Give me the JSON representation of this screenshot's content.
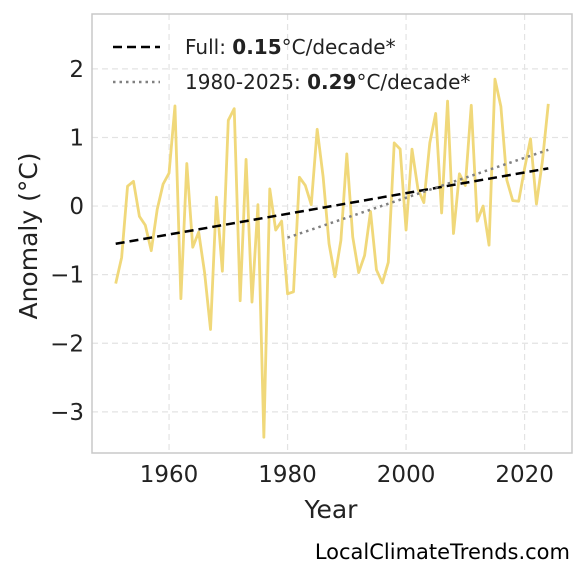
{
  "chart_data": {
    "type": "line",
    "xlabel": "Year",
    "ylabel": "Anomaly (°C)",
    "xlim": [
      1947,
      2028
    ],
    "ylim": [
      -3.6,
      2.8
    ],
    "x_ticks": [
      1960,
      1980,
      2000,
      2020
    ],
    "x_tick_labels": [
      "1960",
      "1980",
      "2000",
      "2020"
    ],
    "y_ticks": [
      -3,
      -2,
      -1,
      0,
      1,
      2
    ],
    "y_tick_labels": [
      "−3",
      "−2",
      "−1",
      "0",
      "1",
      "2"
    ],
    "grid": true,
    "legend_position": "top-left",
    "series": [
      {
        "color": "#f0d87a",
        "x": [
          1951,
          1952,
          1953,
          1954,
          1955,
          1956,
          1957,
          1958,
          1959,
          1960,
          1961,
          1962,
          1963,
          1964,
          1965,
          1966,
          1967,
          1968,
          1969,
          1970,
          1971,
          1972,
          1973,
          1974,
          1975,
          1976,
          1977,
          1978,
          1979,
          1980,
          1981,
          1982,
          1983,
          1984,
          1985,
          1986,
          1987,
          1988,
          1989,
          1990,
          1991,
          1992,
          1993,
          1994,
          1995,
          1996,
          1997,
          1998,
          1999,
          2000,
          2001,
          2002,
          2003,
          2004,
          2005,
          2006,
          2007,
          2008,
          2009,
          2010,
          2011,
          2012,
          2013,
          2014,
          2015,
          2016,
          2017,
          2018,
          2019,
          2020,
          2021,
          2022,
          2023,
          2024
        ],
        "values": [
          -1.13,
          -0.75,
          0.29,
          0.36,
          -0.15,
          -0.28,
          -0.65,
          -0.05,
          0.32,
          0.48,
          1.46,
          -1.35,
          0.62,
          -0.6,
          -0.38,
          -0.97,
          -1.8,
          0.13,
          -0.95,
          1.25,
          1.42,
          -1.38,
          0.68,
          -1.4,
          0.02,
          -3.37,
          0.25,
          -0.35,
          -0.22,
          -1.28,
          -1.25,
          0.42,
          0.3,
          0.02,
          1.12,
          0.43,
          -0.55,
          -1.03,
          -0.5,
          0.76,
          -0.45,
          -0.97,
          -0.72,
          -0.08,
          -0.93,
          -1.12,
          -0.82,
          0.92,
          0.83,
          -0.35,
          0.83,
          0.25,
          0.05,
          0.92,
          1.35,
          -0.1,
          1.53,
          -0.4,
          0.47,
          0.3,
          1.47,
          -0.22,
          0.0,
          -0.57,
          1.85,
          1.45,
          0.38,
          0.08,
          0.07,
          0.55,
          0.98,
          0.03,
          0.65,
          1.49
        ]
      },
      {
        "name": "Full",
        "style": "dashed",
        "color": "#000000",
        "x": [
          1951,
          2024
        ],
        "values": [
          -0.55,
          0.55
        ]
      },
      {
        "name": "1980-2025",
        "style": "dotted",
        "color": "#808080",
        "x": [
          1980,
          2024
        ],
        "values": [
          -0.46,
          0.82
        ]
      }
    ],
    "legend": [
      {
        "prefix": "Full: ",
        "bold": "0.15",
        "suffix": "°C/decade*"
      },
      {
        "prefix": "1980-2025: ",
        "bold": "0.29",
        "suffix": "°C/decade*"
      }
    ],
    "watermark": "LocalClimateTrends.com"
  }
}
